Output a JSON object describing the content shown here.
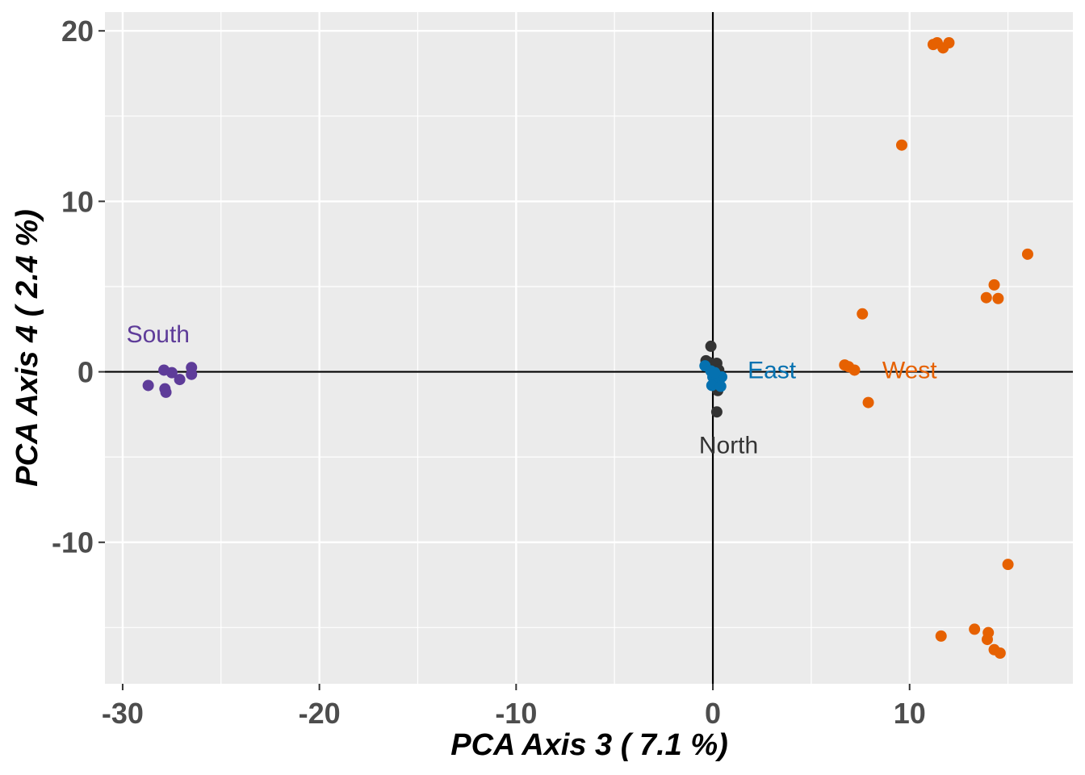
{
  "chart_data": {
    "type": "scatter",
    "xlabel": "PCA Axis 3 ( 7.1 %)",
    "ylabel": "PCA Axis 4 ( 2.4 %)",
    "xlim": [
      -30.9,
      18.3
    ],
    "ylim": [
      -18.3,
      21.1
    ],
    "x_major_ticks": [
      -30,
      -20,
      -10,
      0,
      10
    ],
    "x_minor_ticks": [
      -25,
      -15,
      -5,
      5,
      15
    ],
    "y_major_ticks": [
      -10,
      0,
      10,
      20
    ],
    "y_minor_ticks": [
      -15,
      -5,
      5,
      15
    ],
    "x_tick_labels": [
      "-30",
      "-20",
      "-10",
      "0",
      "10"
    ],
    "y_tick_labels": [
      "-10",
      "0",
      "10",
      "20"
    ],
    "reference_lines": {
      "x": 0,
      "y": 0
    },
    "grid": true,
    "background": "#ebebeb",
    "series": [
      {
        "name": "South",
        "color": "#5e3c99",
        "label_at": [
          -28.2,
          2.2
        ],
        "points": [
          [
            -27.9,
            0.1
          ],
          [
            -27.5,
            -0.05
          ],
          [
            -28.7,
            -0.8
          ],
          [
            -27.1,
            -0.45
          ],
          [
            -27.85,
            -1.0
          ],
          [
            -27.8,
            -1.2
          ],
          [
            -26.5,
            0.25
          ],
          [
            -26.5,
            -0.15
          ]
        ]
      },
      {
        "name": "North",
        "color": "#333333",
        "label_at": [
          0.8,
          -4.3
        ],
        "points": [
          [
            -0.1,
            1.5
          ],
          [
            -0.35,
            0.65
          ],
          [
            -0.2,
            0.55
          ],
          [
            0.2,
            0.5
          ],
          [
            0.3,
            0.1
          ],
          [
            0.25,
            -1.1
          ],
          [
            0.2,
            -2.35
          ]
        ]
      },
      {
        "name": "East",
        "color": "#0571b0",
        "label_at": [
          3.0,
          0.1
        ],
        "points": [
          [
            -0.4,
            0.35
          ],
          [
            -0.1,
            0.05
          ],
          [
            0.0,
            -0.3
          ],
          [
            0.3,
            -0.6
          ],
          [
            0.45,
            -0.3
          ],
          [
            -0.05,
            -0.8
          ],
          [
            0.4,
            -0.85
          ],
          [
            0.1,
            -0.05
          ]
        ]
      },
      {
        "name": "West",
        "color": "#e66101",
        "label_at": [
          10.0,
          0.1
        ],
        "points": [
          [
            11.2,
            19.2
          ],
          [
            11.4,
            19.3
          ],
          [
            11.7,
            19.0
          ],
          [
            12.0,
            19.3
          ],
          [
            9.6,
            13.3
          ],
          [
            16.0,
            6.9
          ],
          [
            14.3,
            5.1
          ],
          [
            13.9,
            4.35
          ],
          [
            14.5,
            4.3
          ],
          [
            7.6,
            3.4
          ],
          [
            6.7,
            0.4
          ],
          [
            6.9,
            0.3
          ],
          [
            7.2,
            0.1
          ],
          [
            7.9,
            -1.8
          ],
          [
            15.0,
            -11.3
          ],
          [
            13.3,
            -15.1
          ],
          [
            14.0,
            -15.3
          ],
          [
            13.95,
            -15.7
          ],
          [
            11.6,
            -15.5
          ],
          [
            14.3,
            -16.3
          ],
          [
            14.6,
            -16.5
          ]
        ]
      }
    ]
  }
}
